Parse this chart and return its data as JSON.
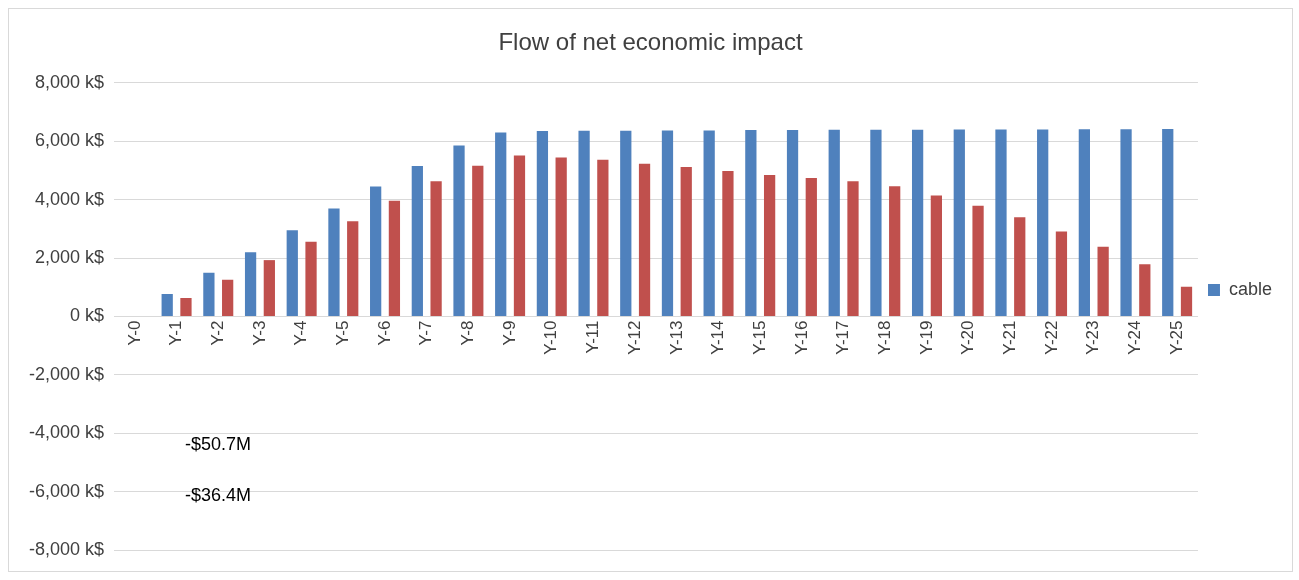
{
  "chart_data": {
    "type": "bar",
    "title": "Flow of net economic impact",
    "categories": [
      "Y-0",
      "Y-1",
      "Y-2",
      "Y-3",
      "Y-4",
      "Y-5",
      "Y-6",
      "Y-7",
      "Y-8",
      "Y-9",
      "Y-10",
      "Y-11",
      "Y-12",
      "Y-13",
      "Y-14",
      "Y-15",
      "Y-16",
      "Y-17",
      "Y-18",
      "Y-19",
      "Y-20",
      "Y-21",
      "Y-22",
      "Y-23",
      "Y-24",
      "Y-25"
    ],
    "series": [
      {
        "name": "cable",
        "color": "#4f81bd",
        "values": [
          null,
          770,
          1500,
          2200,
          2950,
          3700,
          4450,
          5150,
          5850,
          6300,
          6350,
          6360,
          6360,
          6370,
          6370,
          6380,
          6380,
          6390,
          6390,
          6390,
          6400,
          6400,
          6400,
          6410,
          6410,
          6420
        ]
      },
      {
        "color": "#c0504d",
        "values": [
          null,
          630,
          1260,
          1930,
          2560,
          3260,
          3960,
          4630,
          5160,
          5510,
          5440,
          5370,
          5230,
          5120,
          4980,
          4840,
          4740,
          4630,
          4460,
          4140,
          3790,
          3400,
          2910,
          2390,
          1790,
          1020
        ]
      }
    ],
    "ylim": [
      -8000,
      8000
    ],
    "yticks": [
      {
        "value": -8000,
        "label": "-8,000 k$"
      },
      {
        "value": -6000,
        "label": "-6,000 k$"
      },
      {
        "value": -4000,
        "label": "-4,000 k$"
      },
      {
        "value": -2000,
        "label": "-2,000 k$"
      },
      {
        "value": 0,
        "label": "0 k$"
      },
      {
        "value": 2000,
        "label": "2,000 k$"
      },
      {
        "value": 4000,
        "label": "4,000 k$"
      },
      {
        "value": 6000,
        "label": "6,000 k$"
      },
      {
        "value": 8000,
        "label": "8,000 k$"
      }
    ],
    "annotations": [
      "-$50.7M",
      "-$36.4M"
    ],
    "grid": "y",
    "legend": "right"
  }
}
